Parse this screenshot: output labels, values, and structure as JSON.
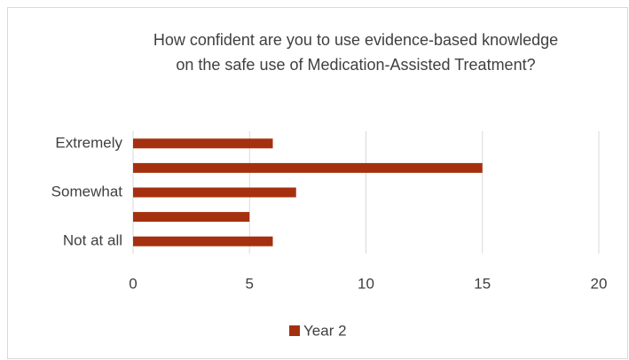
{
  "chart_data": {
    "type": "bar",
    "orientation": "horizontal",
    "title": "How confident are you to use evidence-based knowledge on the safe use of Medication-Assisted Treatment?",
    "categories": [
      "Extremely",
      null,
      "Somewhat",
      null,
      "Not at all"
    ],
    "series": [
      {
        "name": "Year 2",
        "color": "#a5300f",
        "values": [
          6,
          15,
          7,
          5,
          6
        ]
      }
    ],
    "xlim": [
      0,
      20
    ],
    "xticks": [
      0,
      5,
      10,
      15,
      20
    ],
    "grid": true,
    "legend": "bottom"
  }
}
